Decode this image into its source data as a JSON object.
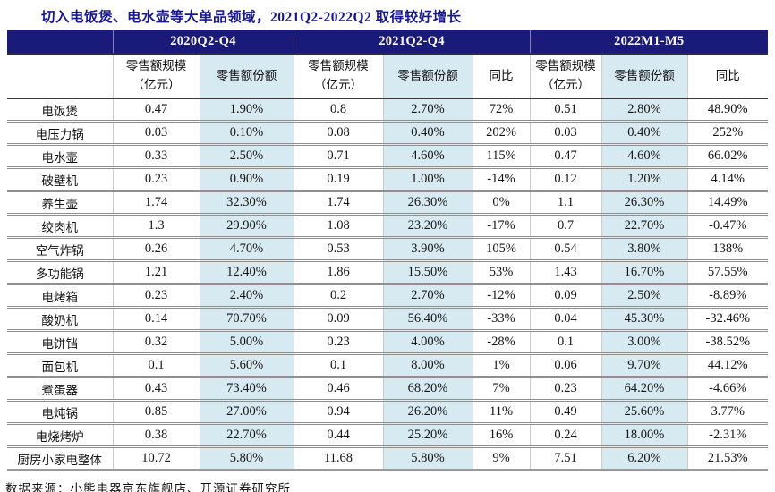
{
  "figure": {
    "title": "切入电饭煲、电水壶等大单品领域，2021Q2-2022Q2 取得较好增长",
    "source_note": "数据来源：小熊电器京东旗舰店、开源证券研究所"
  },
  "colors": {
    "header_bg": "#1A1A78",
    "shaded_column_bg": "#D7E9F1",
    "title_text": "#17178F"
  },
  "chart_data": {
    "type": "table",
    "title": "切入电饭煲、电水壶等大单品领域，2021Q2-2022Q2 取得较好增长",
    "column_groups": [
      {
        "label": "2020Q2-Q4",
        "columns": 2
      },
      {
        "label": "2021Q2-Q4",
        "columns": 3
      },
      {
        "label": "2022M1-M5",
        "columns": 3
      }
    ],
    "sub_headers": [
      "零售额规模\n（亿元）",
      "零售额份额",
      "零售额规模\n（亿元）",
      "零售额份额",
      "同比",
      "零售额规模\n（亿元）",
      "零售额份额",
      "同比"
    ],
    "shaded_value_columns": [
      1,
      3,
      6
    ],
    "rows": [
      {
        "item": "电饭煲",
        "values": [
          "0.47",
          "1.90%",
          "0.8",
          "2.70%",
          "72%",
          "0.51",
          "2.80%",
          "48.90%"
        ]
      },
      {
        "item": "电压力锅",
        "values": [
          "0.03",
          "0.10%",
          "0.08",
          "0.40%",
          "202%",
          "0.03",
          "0.40%",
          "252%"
        ]
      },
      {
        "item": "电水壶",
        "values": [
          "0.33",
          "2.50%",
          "0.71",
          "4.60%",
          "115%",
          "0.47",
          "4.60%",
          "66.02%"
        ]
      },
      {
        "item": "破壁机",
        "values": [
          "0.23",
          "0.90%",
          "0.19",
          "1.00%",
          "-14%",
          "0.12",
          "1.20%",
          "4.14%"
        ]
      },
      {
        "item": "养生壶",
        "values": [
          "1.74",
          "32.30%",
          "1.74",
          "26.30%",
          "0%",
          "1.1",
          "26.30%",
          "14.49%"
        ]
      },
      {
        "item": "绞肉机",
        "values": [
          "1.3",
          "29.90%",
          "1.08",
          "23.20%",
          "-17%",
          "0.7",
          "22.70%",
          "-0.47%"
        ]
      },
      {
        "item": "空气炸锅",
        "values": [
          "0.26",
          "4.70%",
          "0.53",
          "3.90%",
          "105%",
          "0.54",
          "3.80%",
          "138%"
        ]
      },
      {
        "item": "多功能锅",
        "values": [
          "1.21",
          "12.40%",
          "1.86",
          "15.50%",
          "53%",
          "1.43",
          "16.70%",
          "57.55%"
        ]
      },
      {
        "item": "电烤箱",
        "values": [
          "0.23",
          "2.40%",
          "0.2",
          "2.70%",
          "-12%",
          "0.09",
          "2.50%",
          "-8.89%"
        ]
      },
      {
        "item": "酸奶机",
        "values": [
          "0.14",
          "70.70%",
          "0.09",
          "56.40%",
          "-33%",
          "0.04",
          "45.30%",
          "-32.46%"
        ]
      },
      {
        "item": "电饼铛",
        "values": [
          "0.32",
          "5.00%",
          "0.23",
          "4.00%",
          "-28%",
          "0.1",
          "3.00%",
          "-38.52%"
        ]
      },
      {
        "item": "面包机",
        "values": [
          "0.1",
          "5.60%",
          "0.1",
          "8.00%",
          "1%",
          "0.06",
          "9.70%",
          "44.12%"
        ]
      },
      {
        "item": "煮蛋器",
        "values": [
          "0.43",
          "73.40%",
          "0.46",
          "68.20%",
          "7%",
          "0.23",
          "64.20%",
          "-4.66%"
        ]
      },
      {
        "item": "电炖锅",
        "values": [
          "0.85",
          "27.00%",
          "0.94",
          "26.20%",
          "11%",
          "0.49",
          "25.60%",
          "3.77%"
        ]
      },
      {
        "item": "电烧烤炉",
        "values": [
          "0.38",
          "22.70%",
          "0.44",
          "25.20%",
          "16%",
          "0.24",
          "18.00%",
          "-2.31%"
        ]
      },
      {
        "item": "厨房小家电整体",
        "values": [
          "10.72",
          "5.80%",
          "11.68",
          "5.80%",
          "9%",
          "7.51",
          "6.20%",
          "21.53%"
        ]
      }
    ]
  }
}
